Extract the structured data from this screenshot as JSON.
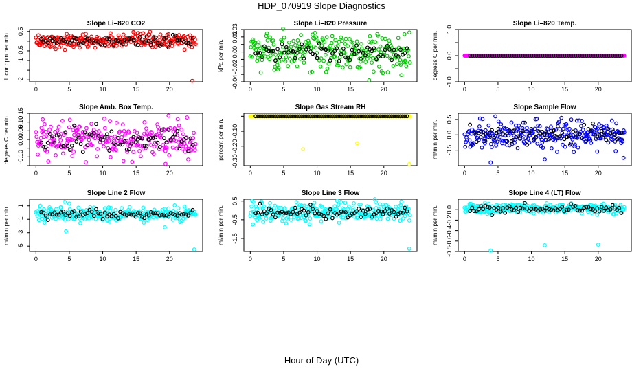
{
  "page": {
    "title": "HDP_070919  Slope Diagnostics",
    "xlabel": "Hour of Day (UTC)"
  },
  "chart_data": [
    {
      "type": "scatter",
      "title": "Slope Li–820 CO2",
      "ylabel": "Licor ppm per min.",
      "color": "#ff0000",
      "xlim": [
        0,
        24
      ],
      "ylim": [
        -2.1,
        0.6
      ],
      "xticks": [
        0,
        5,
        10,
        15,
        20
      ],
      "yticks": [
        -2.0,
        -1.5,
        -1.0,
        -0.5,
        0.0,
        0.5
      ],
      "ytick_labels": [
        "-2",
        "",
        "-1",
        "-0.5",
        "",
        "0.5"
      ],
      "base": 0.0,
      "spread": 0.18,
      "black_spread": 0.12,
      "outliers": [
        [
          23.4,
          -2.05
        ]
      ]
    },
    {
      "type": "scatter",
      "title": "Slope Li–820 Pressure",
      "ylabel": "kPa per min.",
      "color": "#00cc00",
      "xlim": [
        0,
        24
      ],
      "ylim": [
        -0.04,
        0.03
      ],
      "xticks": [
        0,
        5,
        10,
        15,
        20
      ],
      "yticks": [
        -0.04,
        -0.02,
        0.0,
        0.02
      ],
      "ytick_labels": [
        "-0.04",
        "-0.02",
        "0.00",
        "0.02"
      ],
      "extra_yticks": [
        -0.03,
        -0.01,
        0.01,
        0.03
      ],
      "extra_ytick_labels": [
        "",
        "",
        "",
        "0.03"
      ],
      "base": 0.0,
      "spread": 0.012,
      "black_spread": 0.006,
      "outliers": [
        [
          4.9,
          0.031
        ],
        [
          17.8,
          -0.038
        ]
      ]
    },
    {
      "type": "scatter",
      "title": "Slope Li–820 Temp.",
      "ylabel": "degrees C per min.",
      "color": "#ff00ff",
      "xlim": [
        0,
        24
      ],
      "ylim": [
        -1.0,
        1.0
      ],
      "xticks": [
        0,
        5,
        10,
        15,
        20
      ],
      "yticks": [
        -1.0,
        -0.5,
        0.0,
        0.5,
        1.0
      ],
      "ytick_labels": [
        "-1.0",
        "",
        "0.0",
        "",
        "1.0"
      ],
      "base": 0.0,
      "spread": 0.0,
      "black_spread": 0.0,
      "outliers": []
    },
    {
      "type": "scatter",
      "title": "Slope Amb. Box Temp.",
      "ylabel": "degrees C per min.",
      "color": "#ff00ff",
      "xlim": [
        0,
        24
      ],
      "ylim": [
        -0.15,
        0.15
      ],
      "xticks": [
        0,
        5,
        10,
        15,
        20
      ],
      "yticks": [
        -0.15,
        -0.1,
        -0.05,
        0.0,
        0.05,
        0.1,
        0.15
      ],
      "ytick_labels": [
        "",
        "-0.10",
        "",
        "0.00",
        "0.05",
        "0.10",
        "0.15"
      ],
      "base": 0.0,
      "spread": 0.05,
      "black_spread": 0.035,
      "outliers": [
        [
          19.4,
          -0.14
        ]
      ]
    },
    {
      "type": "scatter",
      "title": "Slope Gas Stream RH",
      "ylabel": "percent per min.",
      "color": "#ffff00",
      "xlim": [
        0,
        24
      ],
      "ylim": [
        -0.33,
        0.02
      ],
      "xticks": [
        0,
        5,
        10,
        15,
        20
      ],
      "yticks": [
        -0.3,
        -0.2,
        -0.1,
        0.0
      ],
      "ytick_labels": [
        "-0.30",
        "-0.20",
        "-0.10",
        ""
      ],
      "base": 0.0,
      "spread": 0.0,
      "black_spread": 0.0,
      "outliers": [
        [
          7.9,
          -0.22
        ],
        [
          16.0,
          -0.18
        ],
        [
          23.8,
          -0.32
        ]
      ]
    },
    {
      "type": "scatter",
      "title": "Slope Sample Flow",
      "ylabel": "ml/min per min.",
      "color": "#0000ff",
      "xlim": [
        0,
        24
      ],
      "ylim": [
        -1.0,
        0.7
      ],
      "xticks": [
        0,
        5,
        10,
        15,
        20
      ],
      "yticks": [
        -0.5,
        0.0,
        0.5
      ],
      "ytick_labels": [
        "-0.5",
        "0.0",
        "0.5"
      ],
      "base": 0.0,
      "spread": 0.22,
      "black_spread": 0.15,
      "outliers": [
        [
          3.9,
          -0.9
        ],
        [
          4.6,
          0.6
        ],
        [
          23.8,
          -0.75
        ],
        [
          12.0,
          -0.8
        ]
      ]
    },
    {
      "type": "scatter",
      "title": "Slope Line 2 Flow",
      "ylabel": "ml/min per min.",
      "color": "#00ffff",
      "xlim": [
        0,
        24
      ],
      "ylim": [
        -5.8,
        2.0
      ],
      "xticks": [
        0,
        5,
        10,
        15,
        20
      ],
      "yticks": [
        1,
        -1,
        -3,
        -5
      ],
      "ytick_labels": [
        "1",
        "-1",
        "-3",
        "-5"
      ],
      "base": -0.3,
      "spread": 0.55,
      "black_spread": 0.3,
      "outliers": [
        [
          4.3,
          1.6
        ],
        [
          4.5,
          -2.8
        ],
        [
          19.3,
          -2.2
        ],
        [
          23.7,
          -5.5
        ]
      ]
    },
    {
      "type": "scatter",
      "title": "Slope Line 3 Flow",
      "ylabel": "ml/min per min.",
      "color": "#00ffff",
      "xlim": [
        0,
        24
      ],
      "ylim": [
        -2.2,
        0.6
      ],
      "xticks": [
        0,
        5,
        10,
        15,
        20
      ],
      "yticks": [
        0.5,
        -0.5,
        -1.5
      ],
      "ytick_labels": [
        "0.5",
        "-0.5",
        "-1.5"
      ],
      "base": -0.1,
      "spread": 0.25,
      "black_spread": 0.15,
      "outliers": [
        [
          0.4,
          -0.75
        ],
        [
          18.8,
          0.45
        ],
        [
          23.8,
          -2.05
        ]
      ]
    },
    {
      "type": "scatter",
      "title": "Slope Line 4 (LT) Flow",
      "ylabel": "ml/min per min.",
      "color": "#00ffff",
      "xlim": [
        0,
        24
      ],
      "ylim": [
        -0.8,
        0.2
      ],
      "xticks": [
        0,
        5,
        10,
        15,
        20
      ],
      "yticks": [
        0.0,
        -0.2,
        -0.4,
        -0.6,
        -0.8
      ],
      "ytick_labels": [
        "0.0",
        "-0.2",
        "-0.4",
        "-0.6",
        "-0.8"
      ],
      "base": 0.02,
      "spread": 0.05,
      "black_spread": 0.04,
      "outliers": [
        [
          3.9,
          -0.78
        ],
        [
          12.0,
          -0.68
        ],
        [
          20.0,
          -0.67
        ]
      ]
    }
  ]
}
